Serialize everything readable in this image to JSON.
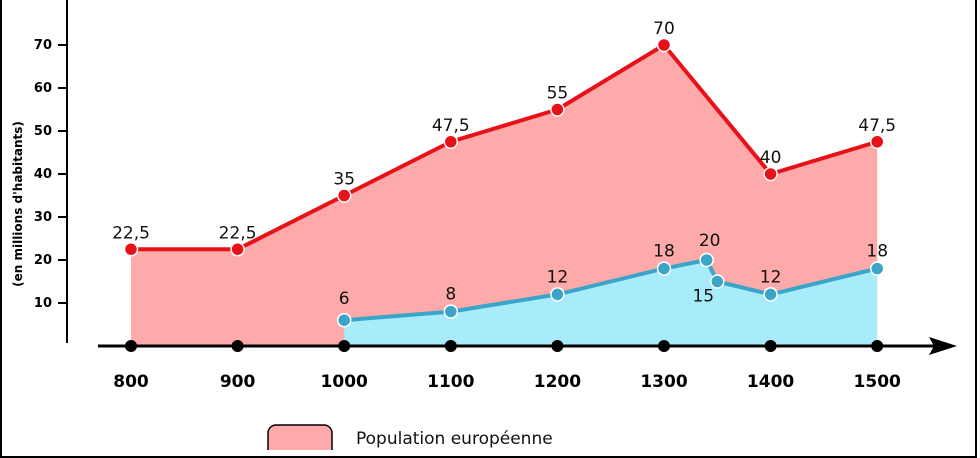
{
  "chart_data": {
    "type": "area",
    "ylabel": "(en millions d'habitants)",
    "xlabel": "",
    "yticks": [
      10,
      20,
      30,
      40,
      50,
      60,
      70
    ],
    "ylim": [
      0,
      80
    ],
    "x_ticks": [
      800,
      900,
      1000,
      1100,
      1200,
      1300,
      1400,
      1500
    ],
    "xlim": [
      770,
      1500
    ],
    "grid": false,
    "colors": {
      "red_line": "#e8111a",
      "red_fill": "#ffaaaa",
      "blue_line": "#3aa5c8",
      "blue_fill": "#a8ecfb",
      "axis_points": "#000000"
    },
    "series": [
      {
        "name": "Population européenne",
        "x": [
          800,
          900,
          1000,
          1100,
          1200,
          1300,
          1400,
          1500
        ],
        "y": [
          22.5,
          22.5,
          35,
          47.5,
          55,
          70,
          40,
          47.5
        ],
        "labels": [
          "22,5",
          "22,5",
          "35",
          "47,5",
          "55",
          "70",
          "40",
          "47,5"
        ]
      },
      {
        "x": [
          1000,
          1100,
          1200,
          1300,
          1340,
          1350,
          1400,
          1500
        ],
        "y": [
          6,
          8,
          12,
          18,
          20,
          15,
          12,
          18
        ],
        "labels": [
          "6",
          "8",
          "12",
          "18",
          "20",
          "15",
          "12",
          "18"
        ]
      }
    ],
    "legend": {
      "placement": "bottom"
    }
  }
}
